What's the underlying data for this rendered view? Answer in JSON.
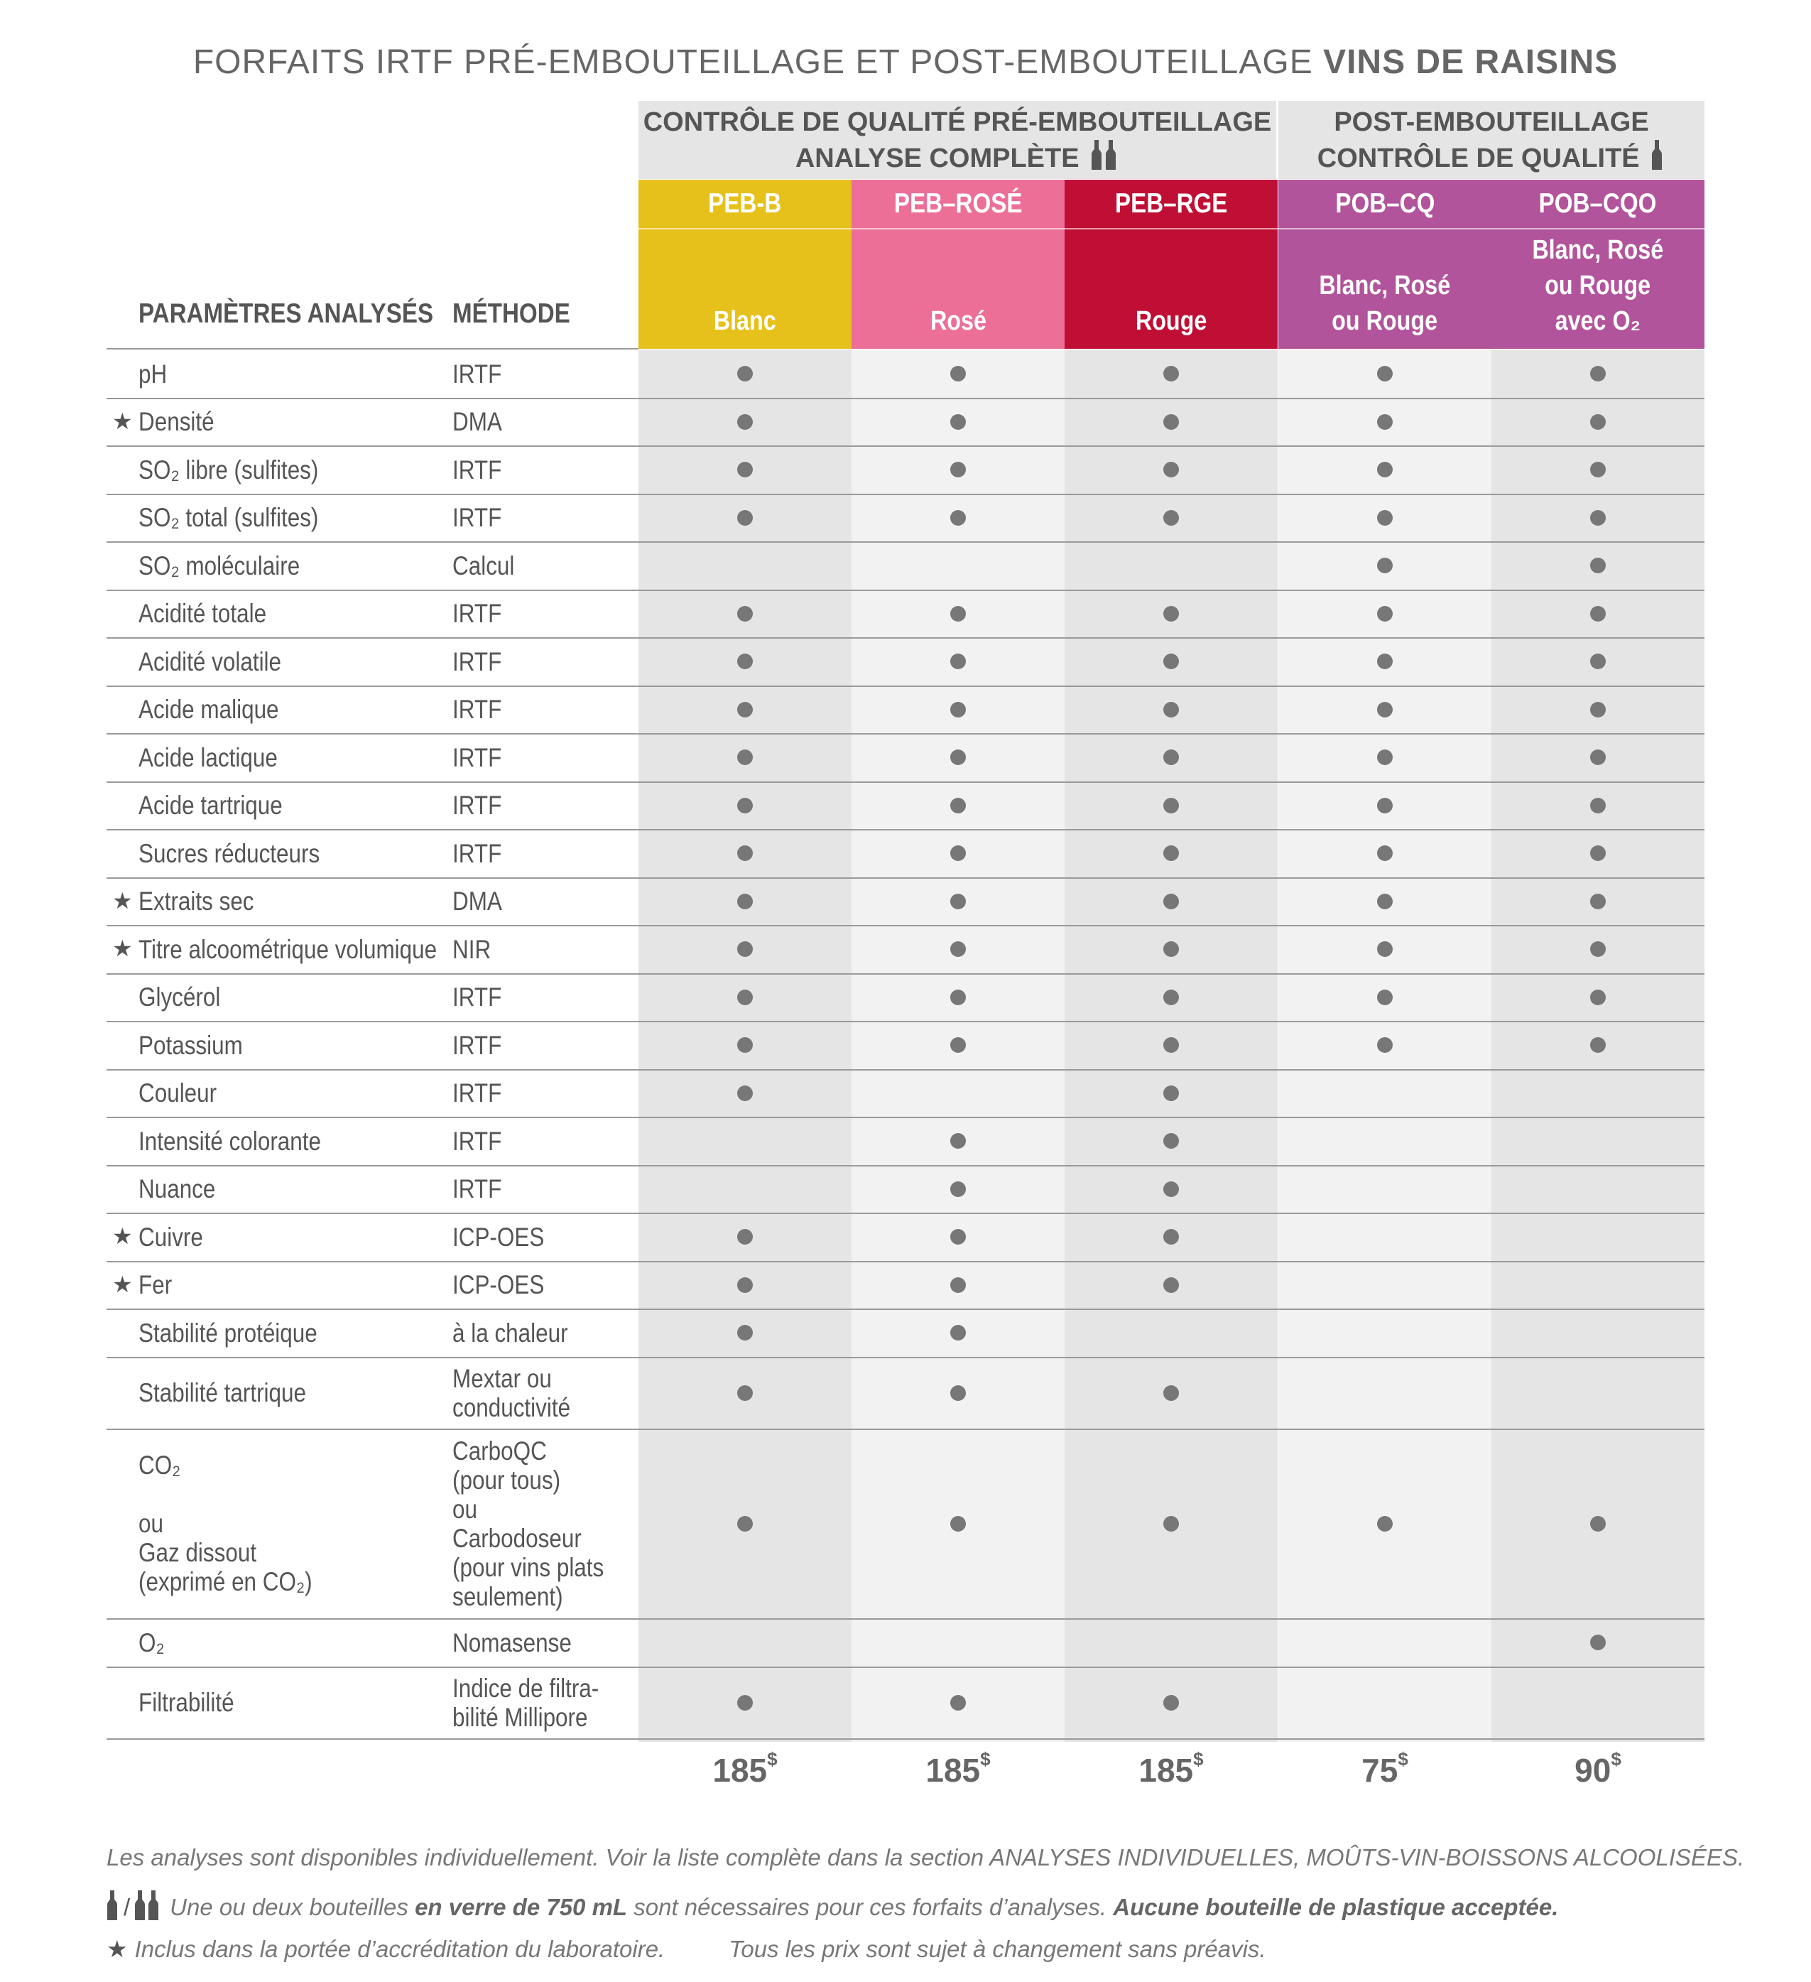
{
  "title": {
    "part1": "FORFAITS IRTF ",
    "part2": "PRÉ-EMBOUTEILLAGE ET POST-EMBOUTEILLAGE ",
    "part3": "VINS DE RAISINS"
  },
  "groups": {
    "pre_line1": "CONTRÔLE DE QUALITÉ PRÉ-EMBOUTEILLAGE",
    "pre_line2": "ANALYSE COMPLÈTE",
    "post_line1": "POST-EMBOUTEILLAGE",
    "post_line2": "CONTRÔLE DE QUALITÉ"
  },
  "headers": {
    "param": "PARAMÈTRES ANALYSÉS",
    "method": "MÉTHODE"
  },
  "packages": [
    {
      "code": "PEB-B",
      "desc": [
        "Blanc"
      ],
      "price": "185",
      "color": "#e6c11b",
      "band": "#e5e5e5"
    },
    {
      "code": "PEB–ROSÉ",
      "desc": [
        "Rosé"
      ],
      "price": "185",
      "color": "#ec6f98",
      "band": "#f2f2f2"
    },
    {
      "code": "PEB–RGE",
      "desc": [
        "Rouge"
      ],
      "price": "185",
      "color": "#c00f35",
      "band": "#e5e5e5"
    },
    {
      "code": "POB–CQ",
      "desc": [
        "Blanc, Rosé",
        "ou Rouge"
      ],
      "price": "75",
      "color": "#b1549b",
      "band": "#f2f2f2"
    },
    {
      "code": "POB–CQO",
      "desc": [
        "Blanc, Rosé",
        "ou Rouge",
        "avec O₂"
      ],
      "price": "90",
      "color": "#b1549b",
      "band": "#e5e5e5"
    }
  ],
  "currency": "$",
  "rows": [
    {
      "star": false,
      "param": [
        "pH"
      ],
      "method": [
        "IRTF"
      ],
      "dots": [
        1,
        1,
        1,
        1,
        1
      ]
    },
    {
      "star": true,
      "param": [
        "Densité"
      ],
      "method": [
        "DMA"
      ],
      "dots": [
        1,
        1,
        1,
        1,
        1
      ]
    },
    {
      "star": false,
      "param": [
        "SO₂ libre (sulfites)"
      ],
      "method": [
        "IRTF"
      ],
      "dots": [
        1,
        1,
        1,
        1,
        1
      ]
    },
    {
      "star": false,
      "param": [
        "SO₂ total (sulfites)"
      ],
      "method": [
        "IRTF"
      ],
      "dots": [
        1,
        1,
        1,
        1,
        1
      ]
    },
    {
      "star": false,
      "param": [
        "SO₂ moléculaire"
      ],
      "method": [
        "Calcul"
      ],
      "dots": [
        0,
        0,
        0,
        1,
        1
      ]
    },
    {
      "star": false,
      "param": [
        "Acidité totale"
      ],
      "method": [
        "IRTF"
      ],
      "dots": [
        1,
        1,
        1,
        1,
        1
      ]
    },
    {
      "star": false,
      "param": [
        "Acidité volatile"
      ],
      "method": [
        "IRTF"
      ],
      "dots": [
        1,
        1,
        1,
        1,
        1
      ]
    },
    {
      "star": false,
      "param": [
        "Acide malique"
      ],
      "method": [
        "IRTF"
      ],
      "dots": [
        1,
        1,
        1,
        1,
        1
      ]
    },
    {
      "star": false,
      "param": [
        "Acide lactique"
      ],
      "method": [
        "IRTF"
      ],
      "dots": [
        1,
        1,
        1,
        1,
        1
      ]
    },
    {
      "star": false,
      "param": [
        "Acide tartrique"
      ],
      "method": [
        "IRTF"
      ],
      "dots": [
        1,
        1,
        1,
        1,
        1
      ]
    },
    {
      "star": false,
      "param": [
        "Sucres réducteurs"
      ],
      "method": [
        "IRTF"
      ],
      "dots": [
        1,
        1,
        1,
        1,
        1
      ]
    },
    {
      "star": true,
      "param": [
        "Extraits sec"
      ],
      "method": [
        "DMA"
      ],
      "dots": [
        1,
        1,
        1,
        1,
        1
      ]
    },
    {
      "star": true,
      "param": [
        "Titre alcoométrique volumique"
      ],
      "method": [
        "NIR"
      ],
      "dots": [
        1,
        1,
        1,
        1,
        1
      ]
    },
    {
      "star": false,
      "param": [
        "Glycérol"
      ],
      "method": [
        "IRTF"
      ],
      "dots": [
        1,
        1,
        1,
        1,
        1
      ]
    },
    {
      "star": false,
      "param": [
        "Potassium"
      ],
      "method": [
        "IRTF"
      ],
      "dots": [
        1,
        1,
        1,
        1,
        1
      ]
    },
    {
      "star": false,
      "param": [
        "Couleur"
      ],
      "method": [
        "IRTF"
      ],
      "dots": [
        1,
        0,
        1,
        0,
        0
      ]
    },
    {
      "star": false,
      "param": [
        "Intensité colorante"
      ],
      "method": [
        "IRTF"
      ],
      "dots": [
        0,
        1,
        1,
        0,
        0
      ]
    },
    {
      "star": false,
      "param": [
        "Nuance"
      ],
      "method": [
        "IRTF"
      ],
      "dots": [
        0,
        1,
        1,
        0,
        0
      ]
    },
    {
      "star": true,
      "param": [
        "Cuivre"
      ],
      "method": [
        "ICP-OES"
      ],
      "dots": [
        1,
        1,
        1,
        0,
        0
      ]
    },
    {
      "star": true,
      "param": [
        "Fer"
      ],
      "method": [
        "ICP-OES"
      ],
      "dots": [
        1,
        1,
        1,
        0,
        0
      ]
    },
    {
      "star": false,
      "param": [
        "Stabilité protéique"
      ],
      "method": [
        "à la chaleur"
      ],
      "dots": [
        1,
        1,
        0,
        0,
        0
      ]
    },
    {
      "star": false,
      "param": [
        "Stabilité tartrique"
      ],
      "method": [
        "Mextar ou",
        "conductivité"
      ],
      "dots": [
        1,
        1,
        1,
        0,
        0
      ]
    },
    {
      "star": false,
      "param": [
        "CO₂",
        "",
        "ou",
        "Gaz dissout",
        "(exprimé en CO₂)"
      ],
      "method": [
        "CarboQC",
        "(pour tous)",
        "ou",
        "Carbodoseur",
        "(pour vins plats",
        "seulement)"
      ],
      "dots": [
        1,
        1,
        1,
        1,
        1
      ]
    },
    {
      "star": false,
      "param": [
        "O₂"
      ],
      "method": [
        "Nomasense"
      ],
      "dots": [
        0,
        0,
        0,
        0,
        1
      ]
    },
    {
      "star": false,
      "param": [
        "Filtrabilité"
      ],
      "method": [
        "Indice de filtra-",
        "bilité Millipore"
      ],
      "dots": [
        1,
        1,
        1,
        0,
        0
      ]
    }
  ],
  "notes": {
    "line1": "Les analyses sont disponibles individuellement. Voir la liste complète dans la section ANALYSES INDIVIDUELLES, MOÛTS-VIN-BOISSONS ALCOOLISÉES.",
    "line2_a": "Une ou deux bouteilles ",
    "line2_b": "en verre de 750 mL",
    "line2_c": " sont nécessaires pour ces forfaits d’analyses. ",
    "line2_d": "Aucune bouteille de plastique acceptée.",
    "line3_a": "Inclus dans la portée d’accréditation du laboratoire.",
    "line3_b": "Tous les prix sont sujet à changement sans préavis."
  },
  "icons": {
    "star": "star-icon",
    "bottle": "bottle-icon",
    "dot": "included-dot-icon"
  }
}
